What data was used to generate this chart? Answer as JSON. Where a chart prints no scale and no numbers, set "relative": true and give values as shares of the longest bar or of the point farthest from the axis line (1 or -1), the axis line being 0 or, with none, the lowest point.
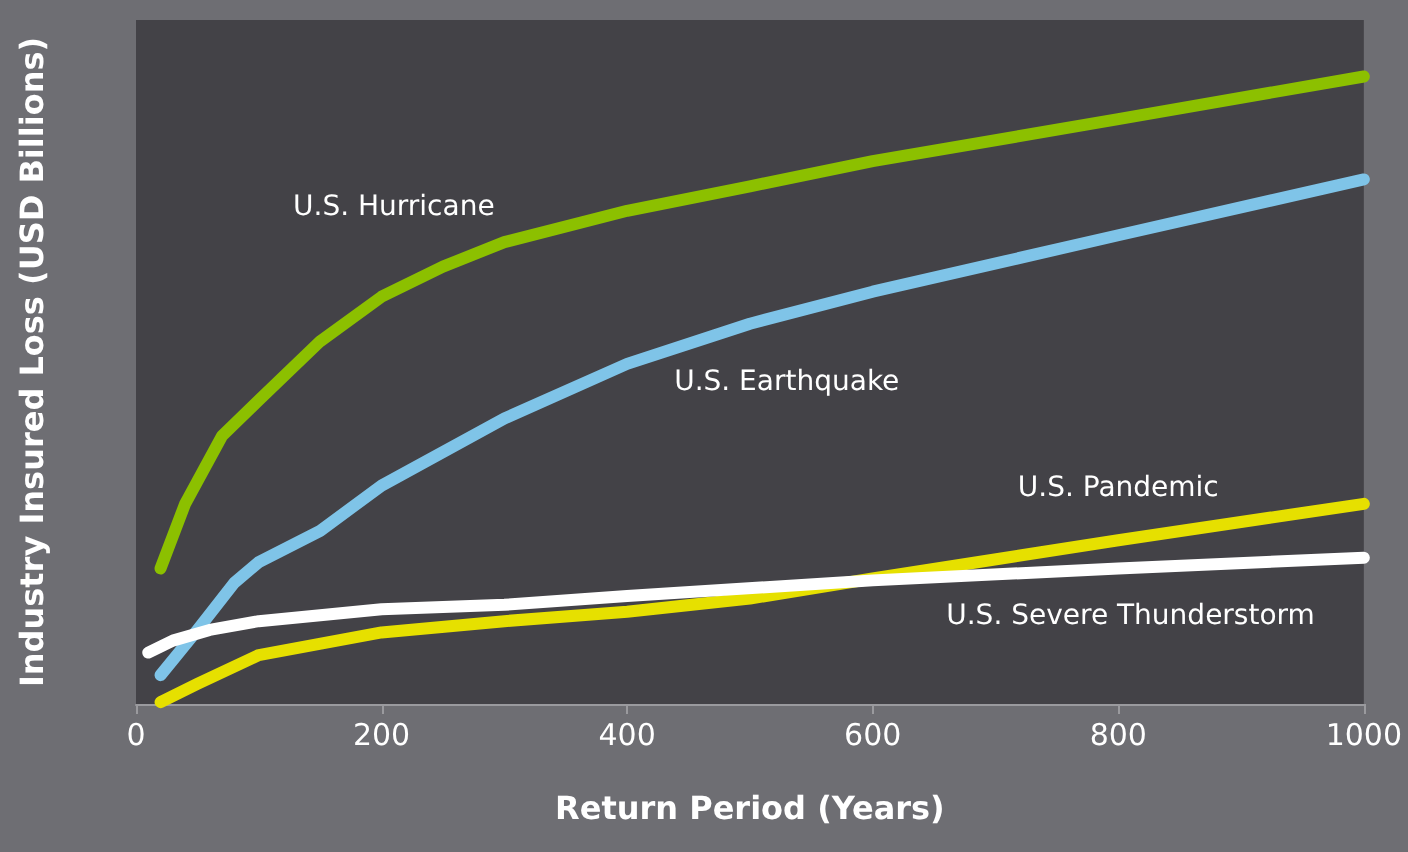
{
  "chart_data": {
    "type": "line",
    "relative": true,
    "xlabel": "Return Period (Years)",
    "ylabel": "Industry Insured Loss (USD Billions)",
    "xlim": [
      0,
      1000
    ],
    "xticks": [
      0,
      200,
      400,
      600,
      800,
      1000
    ],
    "grid": false,
    "legend": false,
    "marker": "none",
    "line_style": "solid",
    "series": [
      {
        "name": "U.S. Hurricane",
        "color": "#8cc000",
        "x": [
          20,
          40,
          70,
          100,
          150,
          200,
          250,
          300,
          400,
          500,
          600,
          800,
          1000
        ],
        "values": [
          0.216,
          0.319,
          0.427,
          0.484,
          0.578,
          0.649,
          0.697,
          0.736,
          0.786,
          0.825,
          0.865,
          0.932,
          1
        ]
      },
      {
        "name": "U.S. Earthquake",
        "color": "#7fc4e8",
        "x": [
          20,
          50,
          80,
          100,
          150,
          200,
          300,
          400,
          500,
          600,
          800,
          1000
        ],
        "values": [
          0.046,
          0.118,
          0.193,
          0.226,
          0.276,
          0.348,
          0.455,
          0.542,
          0.606,
          0.657,
          0.747,
          0.836
        ]
      },
      {
        "name": "U.S. Pandemic",
        "color": "#e6e000",
        "x": [
          20,
          50,
          100,
          200,
          300,
          400,
          500,
          600,
          800,
          1000
        ],
        "values": [
          0.003,
          0.032,
          0.078,
          0.114,
          0.132,
          0.147,
          0.168,
          0.2,
          0.261,
          0.319
        ]
      },
      {
        "name": "U.S. Severe Thunderstorm",
        "color": "#ffffff",
        "x": [
          10,
          30,
          60,
          100,
          200,
          300,
          400,
          600,
          800,
          1000
        ],
        "values": [
          0.082,
          0.101,
          0.118,
          0.132,
          0.151,
          0.158,
          0.172,
          0.197,
          0.216,
          0.233
        ]
      }
    ]
  }
}
